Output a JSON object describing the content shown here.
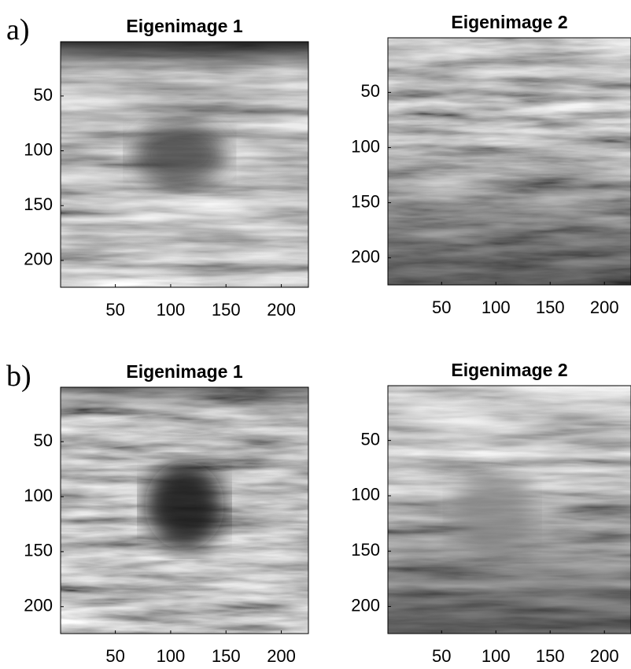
{
  "panel_labels": [
    "a)",
    "b)"
  ],
  "chart_data": [
    {
      "type": "image",
      "title": "Eigenimage 1",
      "xlim": [
        0.5,
        224.5
      ],
      "ylim": [
        224.5,
        0.5
      ],
      "xticks": [
        50,
        100,
        150,
        200
      ],
      "yticks": [
        50,
        100,
        150,
        200
      ]
    },
    {
      "type": "image",
      "title": "Eigenimage 2",
      "xlim": [
        0.5,
        224.5
      ],
      "ylim": [
        224.5,
        0.5
      ],
      "xticks": [
        50,
        100,
        150,
        200
      ],
      "yticks": [
        50,
        100,
        150,
        200
      ]
    },
    {
      "type": "image",
      "title": "Eigenimage 1",
      "xlim": [
        0.5,
        224.5
      ],
      "ylim": [
        224.5,
        0.5
      ],
      "xticks": [
        50,
        100,
        150,
        200
      ],
      "yticks": [
        50,
        100,
        150,
        200
      ]
    },
    {
      "type": "image",
      "title": "Eigenimage 2",
      "xlim": [
        0.5,
        224.5
      ],
      "ylim": [
        224.5,
        0.5
      ],
      "xticks": [
        50,
        100,
        150,
        200
      ],
      "yticks": [
        50,
        100,
        150,
        200
      ]
    }
  ]
}
